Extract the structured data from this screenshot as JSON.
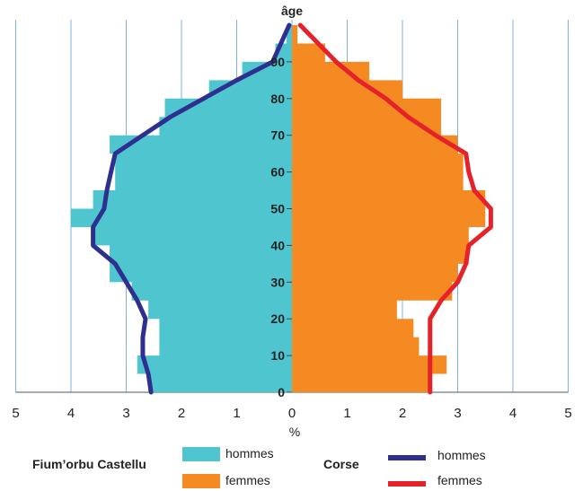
{
  "chart_data": {
    "type": "bar",
    "orientation": "horizontal-population-pyramid",
    "y_axis_title": "âge",
    "x_axis_title": "%",
    "x_ticks": [
      "5",
      "4",
      "3",
      "2",
      "1",
      "0",
      "1",
      "2",
      "3",
      "4",
      "5"
    ],
    "xlim": [
      -5,
      5
    ],
    "y_ticks": [
      "0",
      "10",
      "20",
      "30",
      "40",
      "50",
      "60",
      "70",
      "80",
      "90"
    ],
    "ylim": [
      0,
      100
    ],
    "age_groups": [
      0,
      5,
      10,
      15,
      20,
      25,
      30,
      35,
      40,
      45,
      50,
      55,
      60,
      65,
      70,
      75,
      80,
      85,
      90,
      95
    ],
    "series": [
      {
        "name": "hommes",
        "group": "Fium'orbu Castellu",
        "side": "left",
        "color": "#4fc6cf",
        "values": [
          2.6,
          2.8,
          2.4,
          2.4,
          2.6,
          2.9,
          3.3,
          3.3,
          3.6,
          4.0,
          3.6,
          3.2,
          3.2,
          3.3,
          2.4,
          2.3,
          1.5,
          0.9,
          0.3,
          0.1
        ]
      },
      {
        "name": "femmes",
        "group": "Fium'orbu Castellu",
        "side": "right",
        "color": "#f58a22",
        "values": [
          2.5,
          2.8,
          2.3,
          2.2,
          1.9,
          2.9,
          3.0,
          3.2,
          3.2,
          3.5,
          3.5,
          3.1,
          3.1,
          3.0,
          2.7,
          2.7,
          2.0,
          1.4,
          0.6,
          0.1
        ]
      },
      {
        "name": "hommes",
        "group": "Corse",
        "side": "left",
        "type": "line",
        "color": "#2e2f8f",
        "x": [
          2.55,
          2.6,
          2.7,
          2.7,
          2.65,
          2.8,
          3.0,
          3.2,
          3.6,
          3.6,
          3.4,
          3.35,
          3.2,
          2.7,
          2.2,
          1.6,
          1.0,
          0.35,
          0.05
        ],
        "y": [
          0,
          5,
          10,
          15,
          20,
          25,
          30,
          35,
          40,
          45,
          50,
          55,
          65,
          70,
          75,
          80,
          85,
          90,
          100
        ]
      },
      {
        "name": "femmes",
        "group": "Corse",
        "side": "right",
        "type": "line",
        "color": "#e5222a",
        "x": [
          2.5,
          2.5,
          2.5,
          2.5,
          2.5,
          2.7,
          3.0,
          3.15,
          3.2,
          3.6,
          3.6,
          3.3,
          3.2,
          3.15,
          2.6,
          2.1,
          1.7,
          1.2,
          0.8,
          0.15
        ],
        "y": [
          0,
          5,
          10,
          15,
          20,
          25,
          30,
          35,
          40,
          45,
          50,
          55,
          60,
          65,
          70,
          75,
          80,
          85,
          90,
          100
        ]
      }
    ],
    "grid": true
  },
  "legend": {
    "local_label": "Fium’orbu Castellu",
    "local_hommes": "hommes",
    "local_femmes": "femmes",
    "region_label": "Corse",
    "region_hommes": "hommes",
    "region_femmes": "femmes",
    "colors": {
      "local_hommes": "#4fc6cf",
      "local_femmes": "#f58a22",
      "region_hommes": "#2e2f8f",
      "region_femmes": "#e5222a"
    }
  }
}
